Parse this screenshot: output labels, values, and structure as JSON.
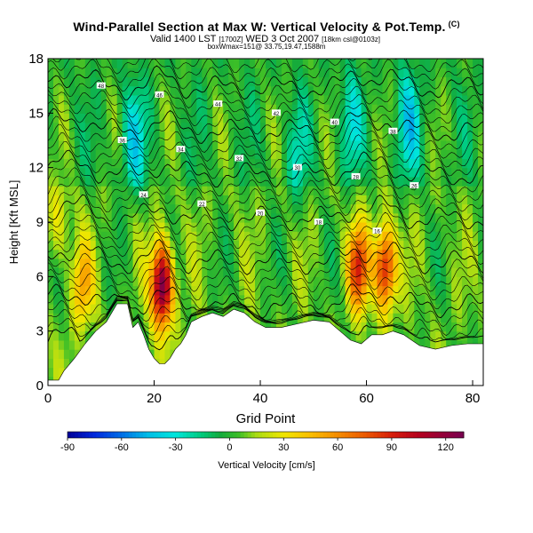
{
  "header": {
    "title": "Wind-Parallel Section at Max W: Vertical Velocity & Pot.Temp.",
    "title_tag": "(C)",
    "subtitle_main": "Valid 1400 LST",
    "subtitle_time_note": "[1700Z]",
    "subtitle_date": "WED 3 Oct 2007",
    "subtitle_model_note": "[18km csl@0103z]",
    "subtitle2": "boxWmax=151@ 33.75,19.47,1588m"
  },
  "chart_data": {
    "type": "heatmap",
    "xlabel": "Grid Point",
    "ylabel": "Height [Kft MSL]",
    "xlim": [
      0,
      82
    ],
    "ylim": [
      0,
      18
    ],
    "x_ticks": [
      0,
      20,
      40,
      60,
      80
    ],
    "y_ticks": [
      0,
      3,
      6,
      9,
      12,
      15,
      18
    ],
    "colorbar": {
      "label": "Vertical Velocity [cm/s]",
      "range": [
        -90,
        130
      ],
      "ticks": [
        -90,
        -60,
        -30,
        0,
        30,
        60,
        90,
        120
      ]
    },
    "terrain": [
      {
        "x": 0,
        "h": 0.3
      },
      {
        "x": 2,
        "h": 0.3
      },
      {
        "x": 3,
        "h": 0.8
      },
      {
        "x": 5,
        "h": 1.5
      },
      {
        "x": 7,
        "h": 2.3
      },
      {
        "x": 9,
        "h": 3.0
      },
      {
        "x": 11,
        "h": 3.5
      },
      {
        "x": 13,
        "h": 4.5
      },
      {
        "x": 15,
        "h": 4.5
      },
      {
        "x": 16,
        "h": 3.2
      },
      {
        "x": 17,
        "h": 3.5
      },
      {
        "x": 18,
        "h": 2.8
      },
      {
        "x": 19,
        "h": 2.0
      },
      {
        "x": 20,
        "h": 1.5
      },
      {
        "x": 21,
        "h": 1.2
      },
      {
        "x": 22,
        "h": 1.2
      },
      {
        "x": 23,
        "h": 1.5
      },
      {
        "x": 24,
        "h": 2.0
      },
      {
        "x": 25,
        "h": 2.3
      },
      {
        "x": 26,
        "h": 2.8
      },
      {
        "x": 27,
        "h": 3.5
      },
      {
        "x": 29,
        "h": 3.8
      },
      {
        "x": 31,
        "h": 4.0
      },
      {
        "x": 33,
        "h": 3.8
      },
      {
        "x": 35,
        "h": 4.2
      },
      {
        "x": 37,
        "h": 4.0
      },
      {
        "x": 39,
        "h": 3.5
      },
      {
        "x": 41,
        "h": 3.2
      },
      {
        "x": 44,
        "h": 3.2
      },
      {
        "x": 47,
        "h": 3.4
      },
      {
        "x": 50,
        "h": 3.6
      },
      {
        "x": 53,
        "h": 3.5
      },
      {
        "x": 55,
        "h": 3.0
      },
      {
        "x": 57,
        "h": 2.5
      },
      {
        "x": 59,
        "h": 2.3
      },
      {
        "x": 61,
        "h": 2.8
      },
      {
        "x": 63,
        "h": 2.8
      },
      {
        "x": 65,
        "h": 3.0
      },
      {
        "x": 67,
        "h": 2.8
      },
      {
        "x": 70,
        "h": 2.2
      },
      {
        "x": 73,
        "h": 2.0
      },
      {
        "x": 76,
        "h": 2.2
      },
      {
        "x": 79,
        "h": 2.3
      },
      {
        "x": 82,
        "h": 2.3
      }
    ],
    "updraft_cores": [
      {
        "x": 21.5,
        "z": 5.5,
        "w": 130
      },
      {
        "x": 63.5,
        "z": 6.5,
        "w": 95
      },
      {
        "x": 58.5,
        "z": 6.5,
        "w": 80
      },
      {
        "x": 6.5,
        "z": 5.5,
        "w": 45
      },
      {
        "x": 2.0,
        "z": 9.0,
        "w": 25
      }
    ],
    "downdraft_cores": [
      {
        "x": 16.0,
        "z": 13.5,
        "w": -35
      },
      {
        "x": 47.0,
        "z": 12.5,
        "w": -20
      },
      {
        "x": 68.0,
        "z": 14.5,
        "w": -35
      },
      {
        "x": 57.0,
        "z": 14.5,
        "w": -25
      }
    ],
    "theta_labels": [
      "48",
      "46",
      "44",
      "42",
      "40",
      "38",
      "36",
      "34",
      "32",
      "30",
      "28",
      "26",
      "24",
      "22",
      "20",
      "18",
      "16"
    ]
  }
}
